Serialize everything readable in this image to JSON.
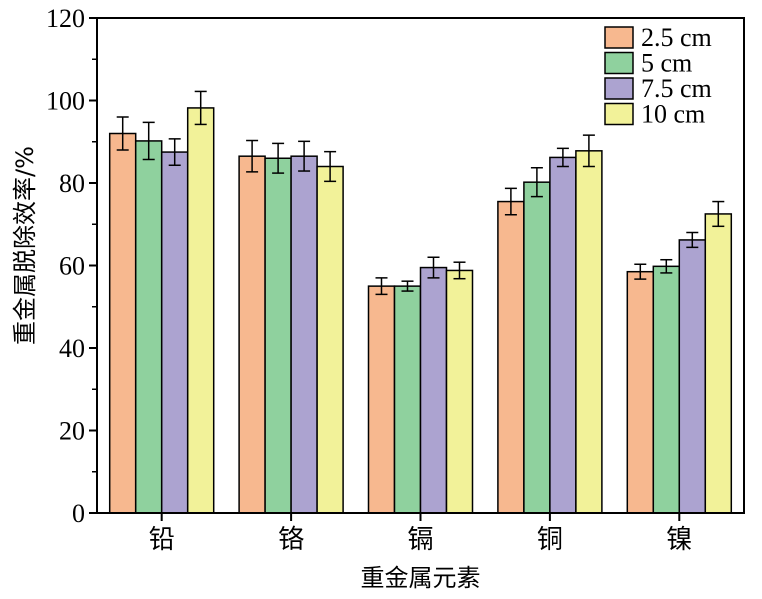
{
  "chart_data": {
    "type": "bar",
    "categories": [
      "铅",
      "铬",
      "镉",
      "铜",
      "镍"
    ],
    "series": [
      {
        "name": "2.5 cm",
        "color": "#F7B88F",
        "values": [
          92,
          86.5,
          55,
          75.5,
          58.5
        ],
        "errors": [
          4.0,
          3.8,
          2.0,
          3.2,
          1.8
        ]
      },
      {
        "name": "5 cm",
        "color": "#8FD19E",
        "values": [
          90.2,
          86,
          55,
          80.2,
          59.8
        ],
        "errors": [
          4.5,
          3.6,
          1.2,
          3.5,
          1.6
        ]
      },
      {
        "name": "7.5 cm",
        "color": "#ACA3D0",
        "values": [
          87.5,
          86.5,
          59.5,
          86.2,
          66.2
        ],
        "errors": [
          3.2,
          3.6,
          2.5,
          2.2,
          1.8
        ]
      },
      {
        "name": "10 cm",
        "color": "#F2F299",
        "values": [
          98.2,
          84,
          58.8,
          87.8,
          72.5
        ],
        "errors": [
          4.0,
          3.6,
          2.0,
          3.8,
          3.0
        ]
      }
    ],
    "xlabel": "重金属元素",
    "ylabel": "重金属脱除效率/%",
    "ylim": [
      0,
      120
    ],
    "yticks": [
      0,
      20,
      40,
      60,
      80,
      100,
      120
    ],
    "legend_position": "top-right",
    "grid": false
  }
}
